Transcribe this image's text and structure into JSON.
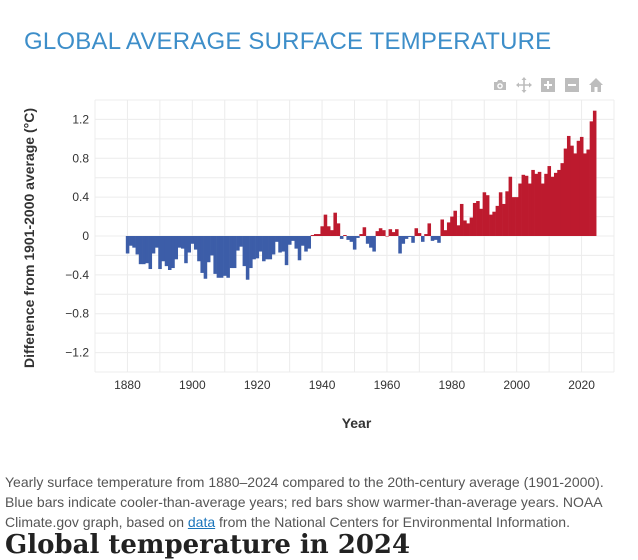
{
  "page": {
    "title": "GLOBAL AVERAGE SURFACE TEMPERATURE",
    "caption_before_link": "Yearly surface temperature from 1880–2024 compared to the 20th-century average (1901-2000). Blue bars indicate cooler-than-average years; red bars show warmer-than-average years. NOAA Climate.gov graph, based on ",
    "caption_link": "data",
    "caption_after_link": " from the National Centers for Environmental Information.",
    "next_heading": "Global temperature in 2024"
  },
  "modebar": [
    {
      "icon": "camera-icon",
      "label": "Download plot as a png"
    },
    {
      "icon": "pan-icon",
      "label": "Pan"
    },
    {
      "icon": "zoom-in-icon",
      "label": "Zoom in"
    },
    {
      "icon": "zoom-out-icon",
      "label": "Zoom out"
    },
    {
      "icon": "home-icon",
      "label": "Reset axes"
    }
  ],
  "colors": {
    "cool": "#3c5da8",
    "warm": "#bd1a2e",
    "grid": "#ececec",
    "title": "#3d8ec9"
  },
  "chart_data": {
    "type": "bar",
    "xlabel": "Year",
    "ylabel": "Difference from 1901-2000 average (°C)",
    "xlim": [
      1870,
      2030
    ],
    "ylim": [
      -1.4,
      1.4
    ],
    "xticks": [
      1880,
      1900,
      1920,
      1940,
      1960,
      1980,
      2000,
      2020
    ],
    "xtick_labels": [
      "1880",
      "1900",
      "1920",
      "1940",
      "1960",
      "1980",
      "2000",
      "2020"
    ],
    "yticks": [
      1.2,
      0.8,
      0.4,
      0,
      -0.4,
      -0.8,
      -1.2
    ],
    "ytick_labels": [
      "1.2",
      "0.8",
      "0.4",
      "0",
      "−0.4",
      "−0.8",
      "−1.2"
    ],
    "grid": true,
    "start_year": 1880,
    "years": [
      1880,
      1881,
      1882,
      1883,
      1884,
      1885,
      1886,
      1887,
      1888,
      1889,
      1890,
      1891,
      1892,
      1893,
      1894,
      1895,
      1896,
      1897,
      1898,
      1899,
      1900,
      1901,
      1902,
      1903,
      1904,
      1905,
      1906,
      1907,
      1908,
      1909,
      1910,
      1911,
      1912,
      1913,
      1914,
      1915,
      1916,
      1917,
      1918,
      1919,
      1920,
      1921,
      1922,
      1923,
      1924,
      1925,
      1926,
      1927,
      1928,
      1929,
      1930,
      1931,
      1932,
      1933,
      1934,
      1935,
      1936,
      1937,
      1938,
      1939,
      1940,
      1941,
      1942,
      1943,
      1944,
      1945,
      1946,
      1947,
      1948,
      1949,
      1950,
      1951,
      1952,
      1953,
      1954,
      1955,
      1956,
      1957,
      1958,
      1959,
      1960,
      1961,
      1962,
      1963,
      1964,
      1965,
      1966,
      1967,
      1968,
      1969,
      1970,
      1971,
      1972,
      1973,
      1974,
      1975,
      1976,
      1977,
      1978,
      1979,
      1980,
      1981,
      1982,
      1983,
      1984,
      1985,
      1986,
      1987,
      1988,
      1989,
      1990,
      1991,
      1992,
      1993,
      1994,
      1995,
      1996,
      1997,
      1998,
      1999,
      2000,
      2001,
      2002,
      2003,
      2004,
      2005,
      2006,
      2007,
      2008,
      2009,
      2010,
      2011,
      2012,
      2013,
      2014,
      2015,
      2016,
      2017,
      2018,
      2019,
      2020,
      2021,
      2022,
      2023,
      2024
    ],
    "values": [
      -0.18,
      -0.1,
      -0.12,
      -0.19,
      -0.29,
      -0.29,
      -0.28,
      -0.34,
      -0.18,
      -0.12,
      -0.34,
      -0.26,
      -0.31,
      -0.35,
      -0.33,
      -0.24,
      -0.12,
      -0.13,
      -0.28,
      -0.17,
      -0.08,
      -0.14,
      -0.26,
      -0.38,
      -0.44,
      -0.27,
      -0.2,
      -0.39,
      -0.43,
      -0.43,
      -0.41,
      -0.43,
      -0.33,
      -0.33,
      -0.15,
      -0.11,
      -0.31,
      -0.45,
      -0.33,
      -0.24,
      -0.23,
      -0.16,
      -0.26,
      -0.24,
      -0.24,
      -0.19,
      -0.06,
      -0.17,
      -0.16,
      -0.3,
      -0.09,
      -0.05,
      -0.13,
      -0.25,
      -0.1,
      -0.16,
      -0.13,
      0.01,
      0.02,
      0.02,
      0.1,
      0.22,
      0.1,
      0.06,
      0.24,
      0.13,
      -0.03,
      0.01,
      -0.04,
      -0.06,
      -0.14,
      -0.02,
      0.02,
      0.09,
      -0.08,
      -0.12,
      -0.16,
      0.05,
      0.08,
      0.06,
      0.0,
      0.07,
      0.04,
      0.07,
      -0.18,
      -0.08,
      -0.03,
      -0.01,
      -0.07,
      0.08,
      0.03,
      -0.06,
      0.02,
      0.13,
      -0.05,
      -0.04,
      -0.07,
      0.17,
      0.06,
      0.14,
      0.2,
      0.26,
      0.11,
      0.33,
      0.16,
      0.13,
      0.19,
      0.34,
      0.36,
      0.28,
      0.45,
      0.42,
      0.22,
      0.25,
      0.31,
      0.45,
      0.33,
      0.46,
      0.61,
      0.4,
      0.4,
      0.54,
      0.63,
      0.62,
      0.54,
      0.68,
      0.64,
      0.66,
      0.54,
      0.64,
      0.72,
      0.61,
      0.65,
      0.68,
      0.75,
      0.9,
      1.03,
      0.93,
      0.85,
      0.98,
      1.02,
      0.85,
      0.89,
      1.18,
      1.29
    ]
  }
}
